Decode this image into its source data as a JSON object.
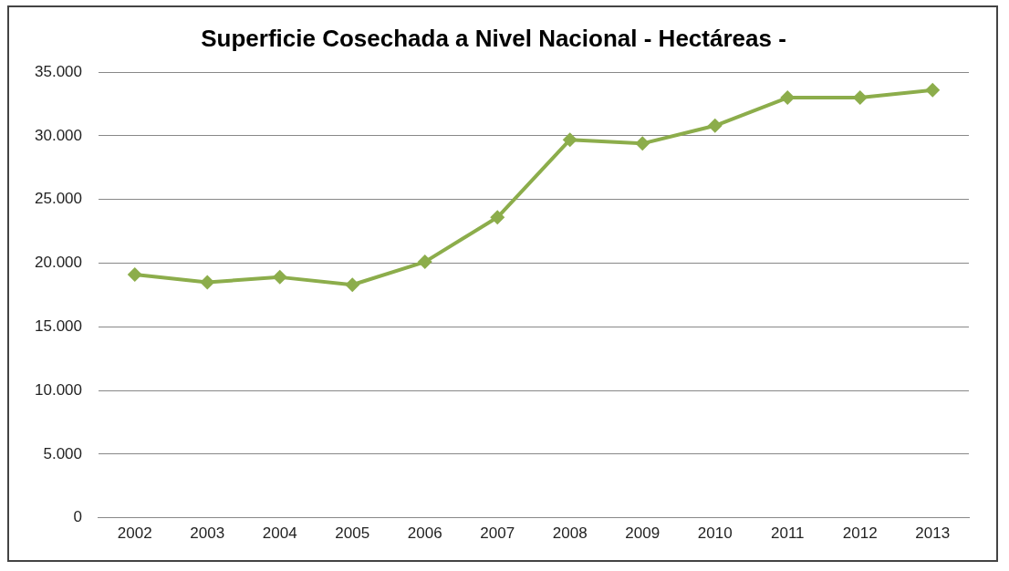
{
  "chart_data": {
    "type": "line",
    "title": "Superficie Cosechada a Nivel Nacional - Hectáreas -",
    "categories": [
      "2002",
      "2003",
      "2004",
      "2005",
      "2006",
      "2007",
      "2008",
      "2009",
      "2010",
      "2011",
      "2012",
      "2013"
    ],
    "series": [
      {
        "color": "#8cad4b",
        "values": [
          19100,
          18500,
          18900,
          18300,
          20100,
          23600,
          29700,
          29400,
          30800,
          33000,
          33000,
          33600
        ]
      }
    ],
    "ylim": [
      0,
      35000
    ],
    "yticks": [
      0,
      {
        "value": 5000,
        "label": "5.000"
      },
      {
        "value": 10000,
        "label": "10.000"
      },
      {
        "value": 15000,
        "label": "15.000"
      },
      {
        "value": 20000,
        "label": "20.000"
      },
      {
        "value": 25000,
        "label": "25.000"
      },
      {
        "value": 30000,
        "label": "30.000"
      },
      {
        "value": 35000,
        "label": "35.000"
      }
    ],
    "grid": "y",
    "legend": false,
    "marker": "diamond",
    "line_style": "solid"
  }
}
